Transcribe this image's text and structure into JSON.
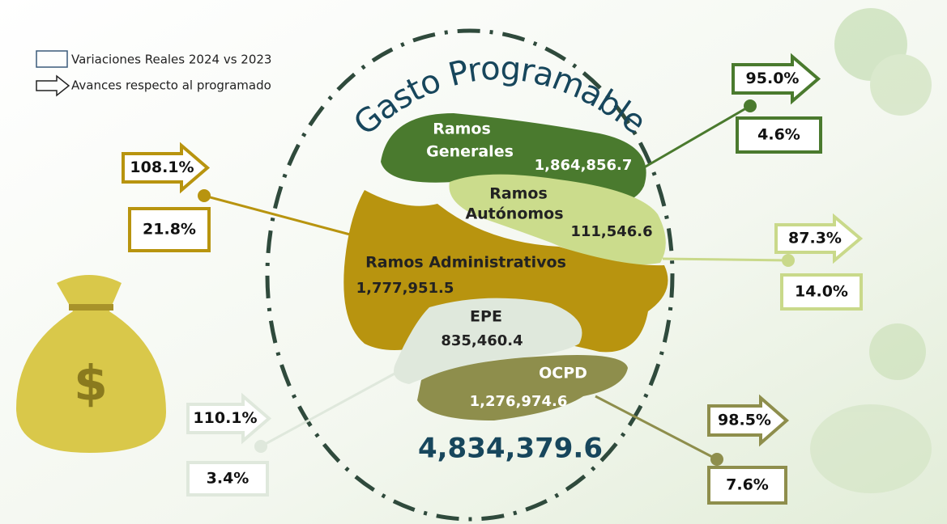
{
  "title": "Gasto Programable",
  "legend": [
    "Variaciones Reales 2024 vs 2023",
    "Avances respecto al programado"
  ],
  "total": "4,834,379.6",
  "segments": [
    {
      "name": [
        "Ramos",
        "Generales"
      ],
      "value": "1,864,856.7",
      "advance": "95.0%",
      "variation": "4.6%"
    },
    {
      "name": [
        "Ramos",
        "Autónomos"
      ],
      "value": "111,546.6",
      "advance": "87.3%",
      "variation": "14.0%"
    },
    {
      "name": [
        "Ramos Administrativos"
      ],
      "value": "1,777,951.5",
      "advance": "108.1%",
      "variation": "21.8%"
    },
    {
      "name": [
        "EPE"
      ],
      "value": "835,460.4",
      "advance": "110.1%",
      "variation": "3.4%"
    },
    {
      "name": [
        "OCPD"
      ],
      "value": "1,276,974.6",
      "advance": "98.5%",
      "variation": "7.6%"
    }
  ]
}
